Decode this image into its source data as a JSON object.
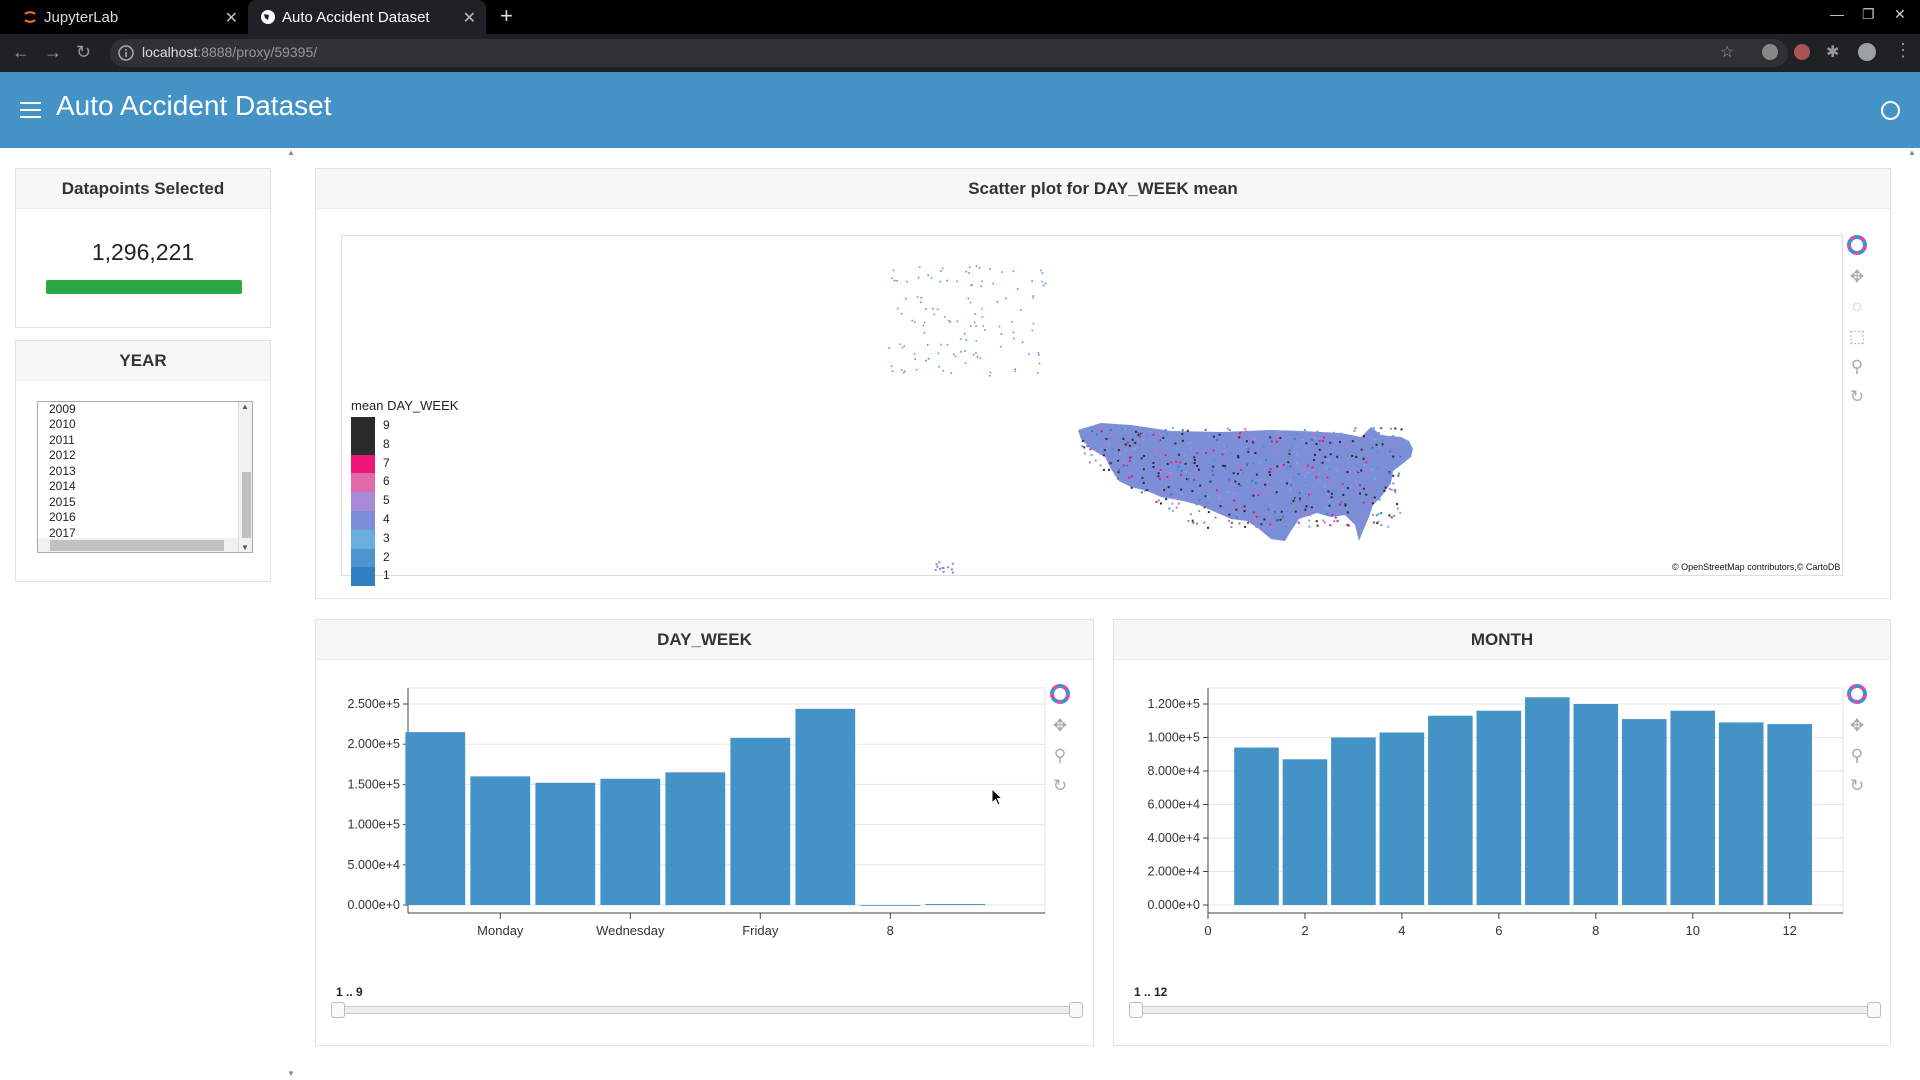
{
  "browser": {
    "tabs": [
      {
        "label": "JupyterLab"
      },
      {
        "label": "Auto Accident Dataset"
      }
    ],
    "url_host": "localhost",
    "url_rest": ":8888/proxy/59395/"
  },
  "app": {
    "title": "Auto Accident Dataset"
  },
  "sidebar": {
    "datapoints": {
      "title": "Datapoints Selected",
      "value": "1,296,221",
      "progress_fraction": 1.0,
      "progress_color": "#28a745"
    },
    "year": {
      "title": "YEAR",
      "options": [
        "2009",
        "2010",
        "2011",
        "2012",
        "2013",
        "2014",
        "2015",
        "2016",
        "2017"
      ]
    }
  },
  "map": {
    "title": "Scatter plot for DAY_WEEK mean",
    "legend_title": "mean DAY_WEEK",
    "legend": [
      {
        "label": "9",
        "color": "#2b2b2b"
      },
      {
        "label": "8",
        "color": "#2b2b2b"
      },
      {
        "label": "7",
        "color": "#f0157a"
      },
      {
        "label": "6",
        "color": "#e26aa8"
      },
      {
        "label": "5",
        "color": "#a98ad8"
      },
      {
        "label": "4",
        "color": "#7d8ed8"
      },
      {
        "label": "3",
        "color": "#6aaedd"
      },
      {
        "label": "2",
        "color": "#4e95cf"
      },
      {
        "label": "1",
        "color": "#2f7fc1"
      }
    ],
    "attribution_osm": "© OpenStreetMap",
    "attribution_rest": "contributors,© ",
    "attribution_carto": "CartoDB"
  },
  "day_week_panel": {
    "title": "DAY_WEEK",
    "range_label": "1 .. 9"
  },
  "month_panel": {
    "title": "MONTH",
    "range_label": "1 .. 12"
  },
  "chart_data": [
    {
      "type": "bar",
      "title": "DAY_WEEK",
      "x": [
        1,
        2,
        3,
        4,
        5,
        6,
        7,
        8,
        9
      ],
      "x_tick_labels": [
        "Monday",
        "Wednesday",
        "Friday",
        "8"
      ],
      "x_tick_positions": [
        2,
        4,
        6,
        8
      ],
      "values": [
        215000,
        160000,
        152000,
        157000,
        165000,
        208000,
        244000,
        0,
        1200
      ],
      "y_tick_labels": [
        "0.000e+0",
        "5.000e+4",
        "1.000e+5",
        "1.500e+5",
        "2.000e+5",
        "2.500e+5"
      ],
      "ylim": [
        0,
        250000
      ],
      "color": "#4393c7"
    },
    {
      "type": "bar",
      "title": "MONTH",
      "x": [
        1,
        2,
        3,
        4,
        5,
        6,
        7,
        8,
        9,
        10,
        11,
        12
      ],
      "values": [
        94000,
        87000,
        100000,
        103000,
        113000,
        116000,
        124000,
        120000,
        111000,
        116000,
        109000,
        108000
      ],
      "x_tick_labels": [
        "0",
        "2",
        "4",
        "6",
        "8",
        "10",
        "12"
      ],
      "y_tick_labels": [
        "0.000e+0",
        "2.000e+4",
        "4.000e+4",
        "6.000e+4",
        "8.000e+4",
        "1.000e+5",
        "1.200e+5"
      ],
      "ylim": [
        0,
        120000
      ],
      "color": "#4393c7"
    }
  ]
}
